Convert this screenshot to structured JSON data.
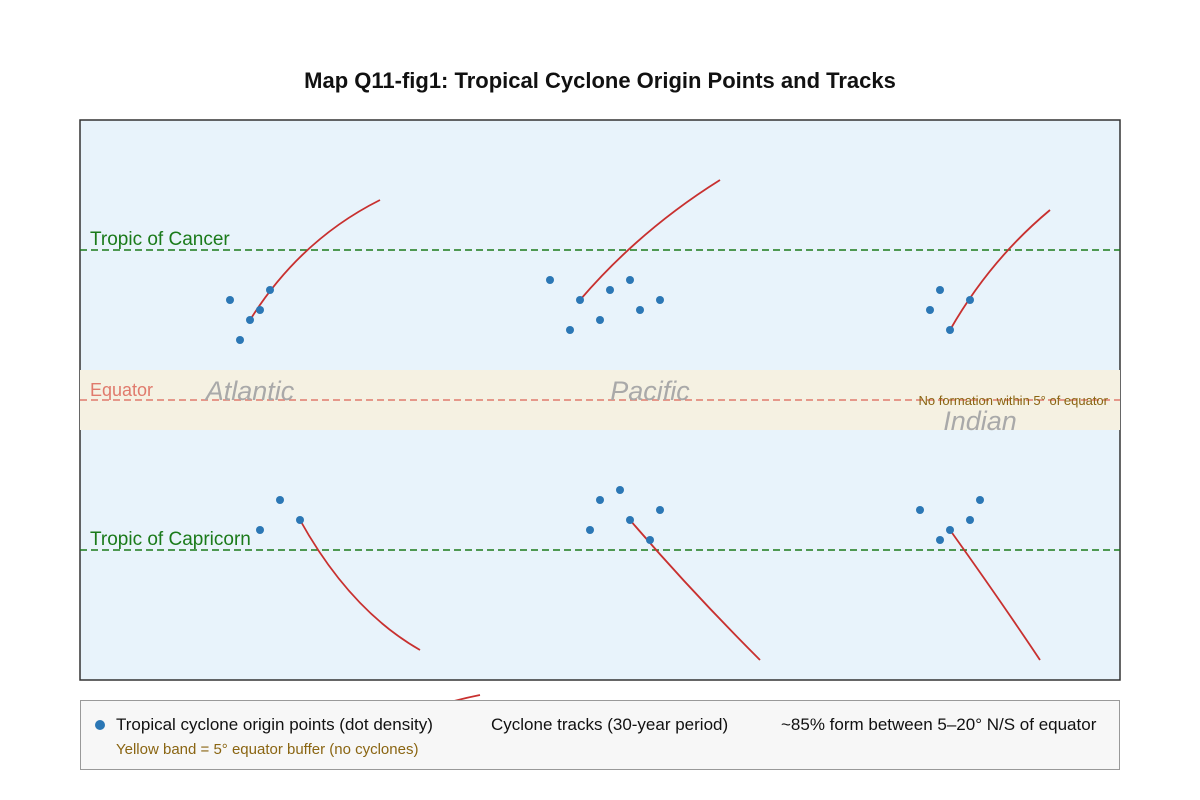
{
  "title": "Map Q11-fig1: Tropical Cyclone Origin Points and Tracks",
  "colors": {
    "ocean": "#e8f3fb",
    "buffer": "#f5f1e2",
    "tropic": "#1a7a1a",
    "equator": "#e07a6c",
    "dot": "#2b77b5",
    "track": "#c8302f",
    "basin_label": "#a9a9a9",
    "note": "#8a6512"
  },
  "map": {
    "lat_range": [
      -40,
      40
    ],
    "lines": {
      "cancer_label": "Tropic of Cancer",
      "capricorn_label": "Tropic of Capricorn",
      "equator_label": "Equator",
      "buffer_label": "No formation within 5° of equator"
    },
    "basins": [
      "Atlantic",
      "Pacific",
      "Indian"
    ]
  },
  "legend": {
    "dots_label": "Tropical cyclone origin points (dot density)",
    "tracks_label": "Cyclone tracks (30-year period)",
    "stat_label": "~85% form between 5–20° N/S of equator",
    "buffer_note": "Yellow band = 5° equator buffer (no cyclones)"
  }
}
